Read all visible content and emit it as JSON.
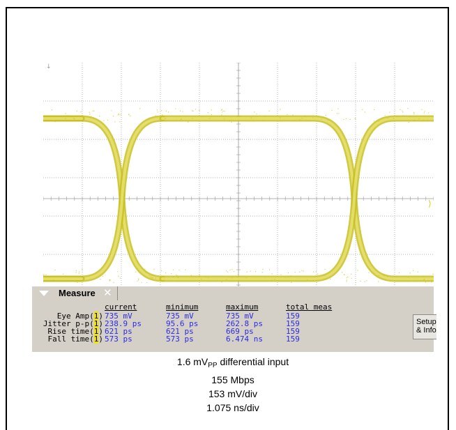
{
  "measure": {
    "title": "Measure",
    "columns": [
      "current",
      "minimum",
      "maximum",
      "total meas"
    ],
    "rows": [
      {
        "label": "Eye Amp(",
        "channel": "1",
        "current": "735 mV",
        "minimum": "735 mV",
        "maximum": "735 mV",
        "total": "159"
      },
      {
        "label": "Jitter p-p(",
        "channel": "1",
        "current": "238.9 ps",
        "minimum": "95.6 ps",
        "maximum": "262.8 ps",
        "total": "159"
      },
      {
        "label": "Rise time(",
        "channel": "1",
        "current": "621 ps",
        "minimum": "621 ps",
        "maximum": "669 ps",
        "total": "159"
      },
      {
        "label": "Fall time(",
        "channel": "1",
        "current": "573 ps",
        "minimum": "573 ps",
        "maximum": "6.474 ns",
        "total": "159"
      }
    ],
    "setup_button": {
      "line1": "Setup",
      "line2": "& Info"
    }
  },
  "captions": {
    "line1_prefix": "1.6 mV",
    "line1_sub": "PP",
    "line1_suffix": " differential input",
    "line2": "155 Mbps",
    "line3": "153 mV/div",
    "line4": "1.075 ns/div"
  },
  "colors": {
    "trace": "#c8c020",
    "trace_light": "#e6e070",
    "grid": "#9a9a9a",
    "panel": "#d4d0c8",
    "value_text": "#2a2ae8",
    "channel_highlight": "#f2e400"
  },
  "icons": {
    "collapse": "triangle-down-icon",
    "close": "close-icon",
    "ground_marker": "ground-marker-icon",
    "level_marker": "trigger-level-icon"
  }
}
